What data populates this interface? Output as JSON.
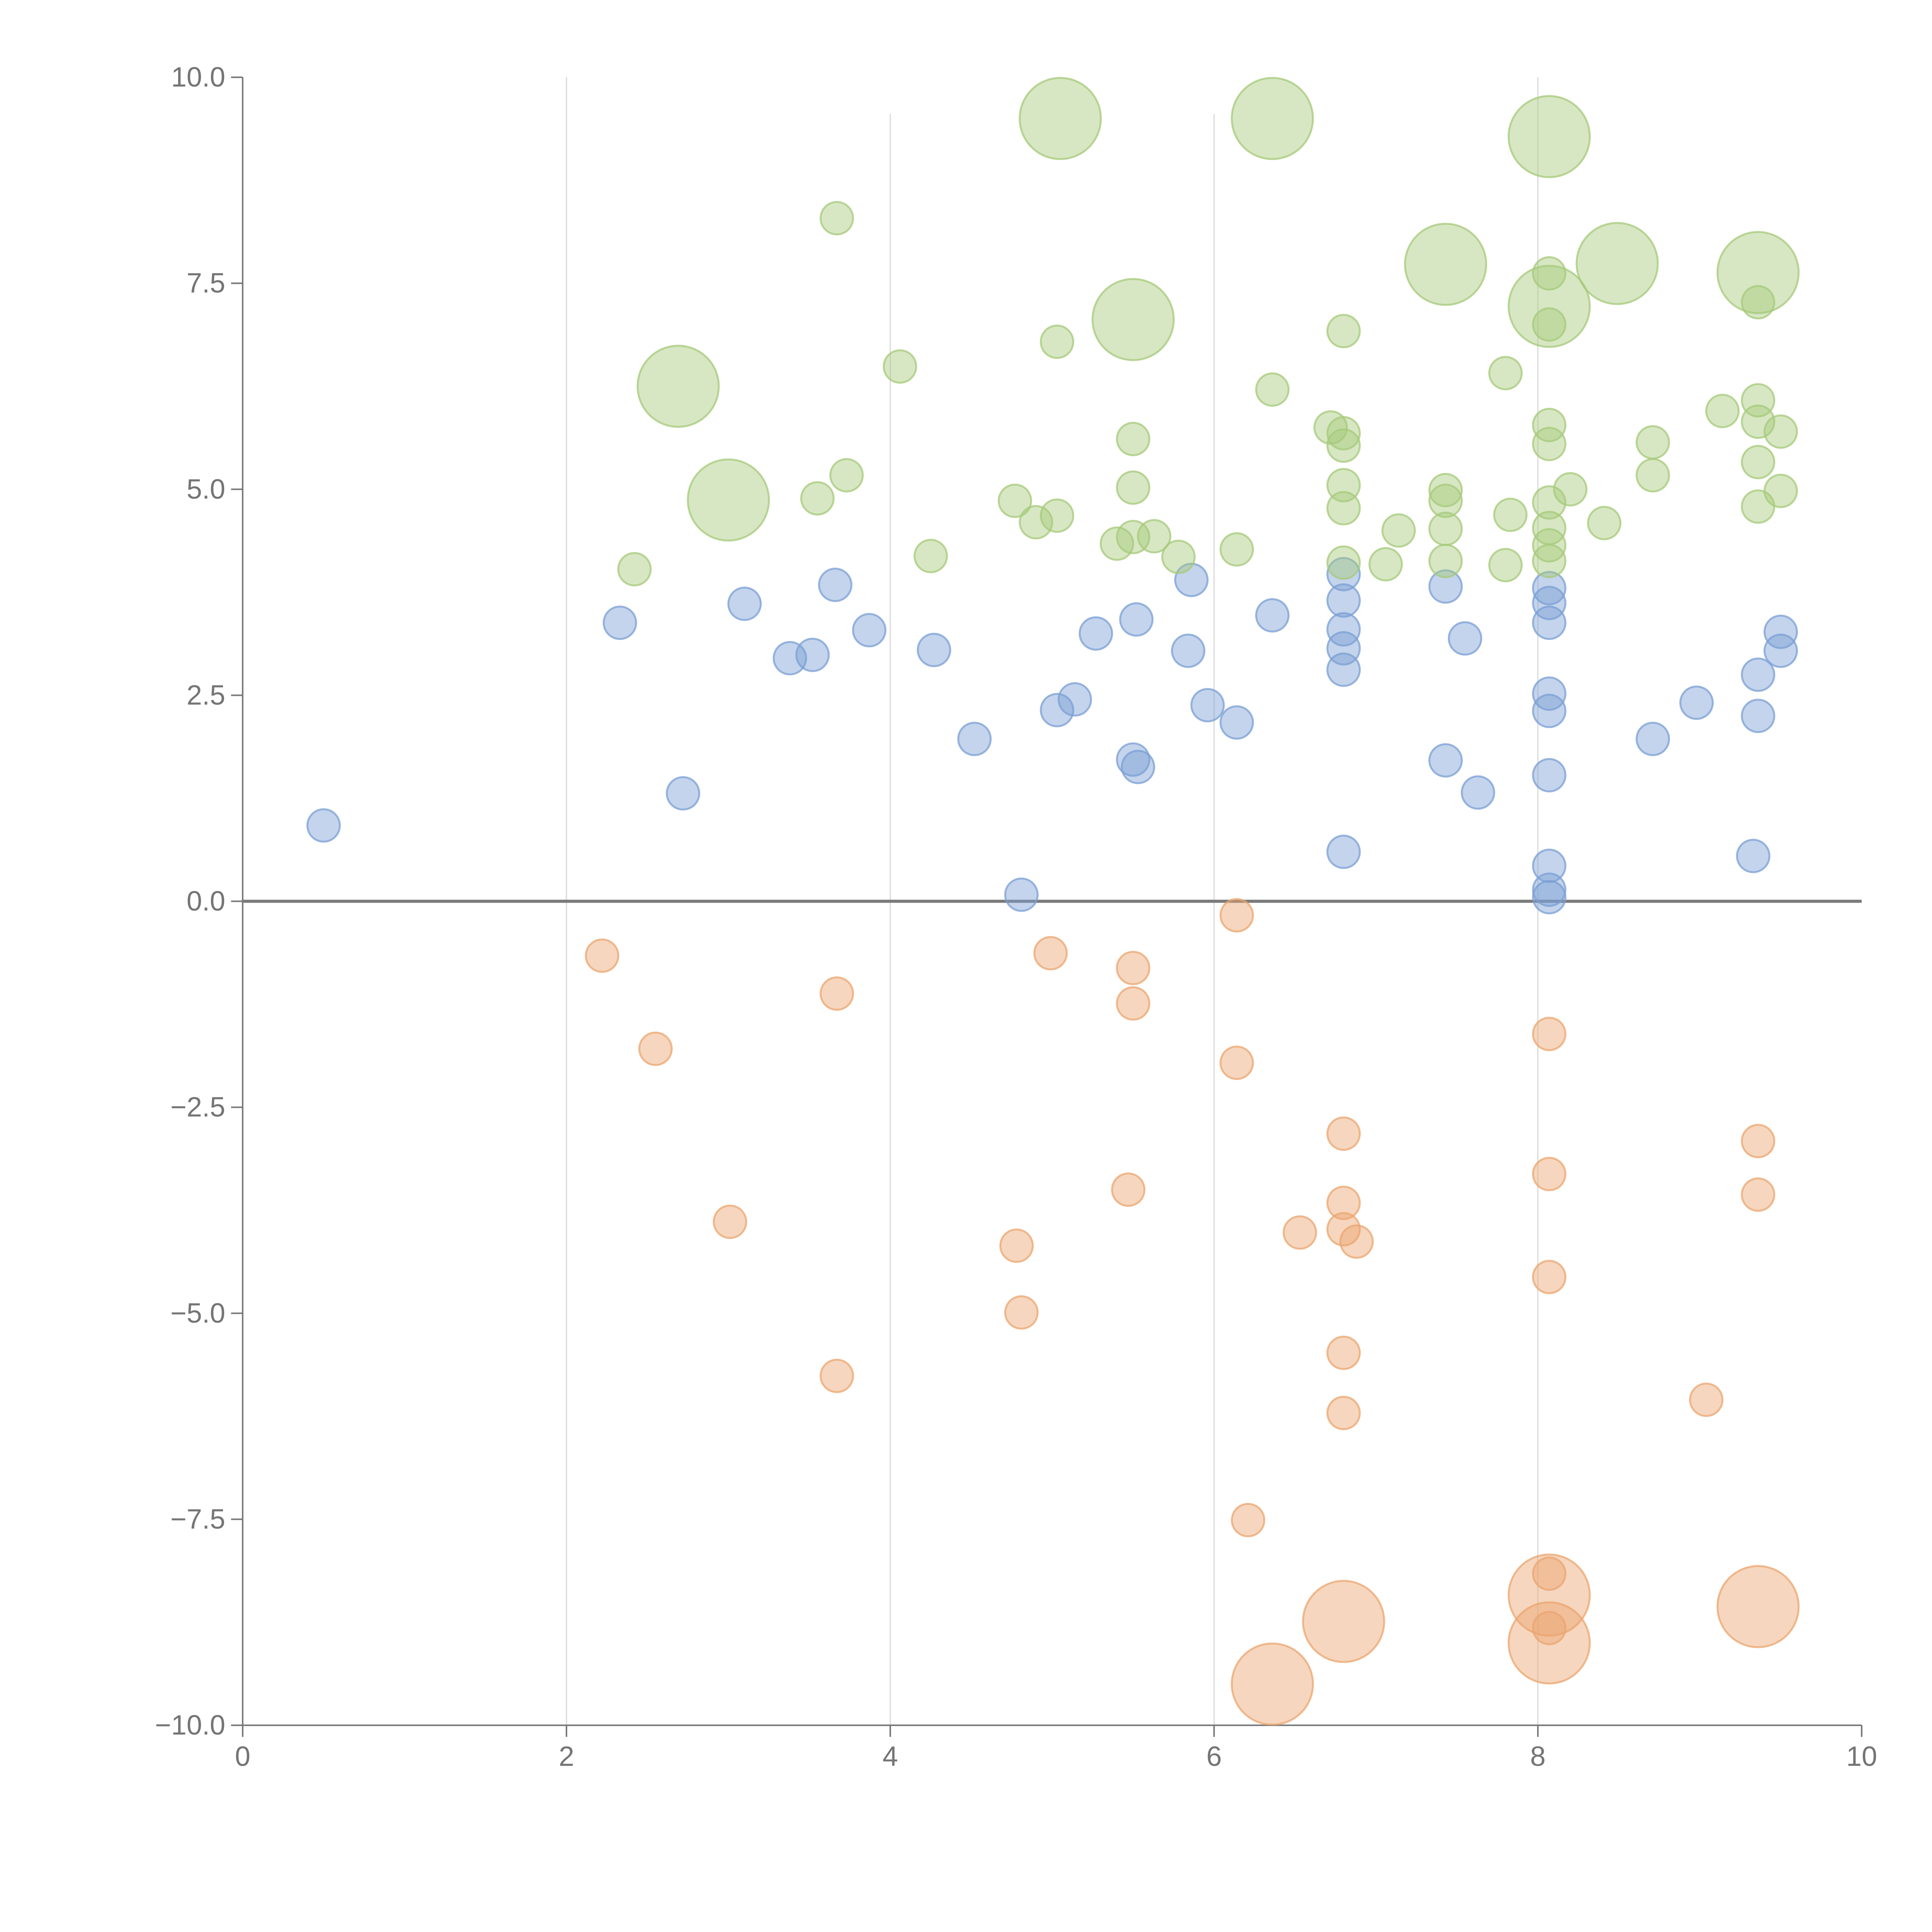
{
  "chart_data": {
    "type": "scatter",
    "title": "",
    "xlabel": "",
    "ylabel": "",
    "xlim": [
      0,
      10
    ],
    "ylim": [
      -10,
      10
    ],
    "x_ticks": [
      {
        "value": 0,
        "label": "0"
      },
      {
        "value": 2,
        "label": "2"
      },
      {
        "value": 4,
        "label": "4"
      },
      {
        "value": 6,
        "label": "6"
      },
      {
        "value": 8,
        "label": "8"
      },
      {
        "value": 10,
        "label": "10"
      }
    ],
    "y_ticks": [
      {
        "value": 10,
        "label": "10.0"
      },
      {
        "value": 7.5,
        "label": "7.5"
      },
      {
        "value": 5,
        "label": "5.0"
      },
      {
        "value": 2.5,
        "label": "2.5"
      },
      {
        "value": 0,
        "label": "0.0"
      },
      {
        "value": -2.5,
        "label": "−2.5"
      },
      {
        "value": -5,
        "label": "−5.0"
      },
      {
        "value": -7.5,
        "label": "−7.5"
      },
      {
        "value": -10,
        "label": "−10.0"
      }
    ],
    "vertical_gridlines_at": [
      2,
      4,
      6,
      8
    ],
    "horizontal_reference_line": 0,
    "legend": "none",
    "series": [
      {
        "color": "#7b9fd4",
        "points": [
          {
            "x": 0.5,
            "y": 0.92,
            "r": 1
          },
          {
            "x": 2.33,
            "y": 3.38,
            "r": 1
          },
          {
            "x": 2.72,
            "y": 1.31,
            "r": 1
          },
          {
            "x": 3.1,
            "y": 3.61,
            "r": 1
          },
          {
            "x": 3.38,
            "y": 2.95,
            "r": 1
          },
          {
            "x": 3.52,
            "y": 2.99,
            "r": 1
          },
          {
            "x": 3.66,
            "y": 3.84,
            "r": 1
          },
          {
            "x": 3.87,
            "y": 3.29,
            "r": 1
          },
          {
            "x": 4.27,
            "y": 3.05,
            "r": 1
          },
          {
            "x": 4.52,
            "y": 1.97,
            "r": 1
          },
          {
            "x": 4.81,
            "y": 0.08,
            "r": 1
          },
          {
            "x": 5.03,
            "y": 2.32,
            "r": 1
          },
          {
            "x": 5.14,
            "y": 2.45,
            "r": 1
          },
          {
            "x": 5.27,
            "y": 3.25,
            "r": 1
          },
          {
            "x": 5.5,
            "y": 1.72,
            "r": 1
          },
          {
            "x": 5.52,
            "y": 3.42,
            "r": 1
          },
          {
            "x": 5.53,
            "y": 1.63,
            "r": 1
          },
          {
            "x": 5.84,
            "y": 3.04,
            "r": 1
          },
          {
            "x": 5.86,
            "y": 3.9,
            "r": 1
          },
          {
            "x": 5.96,
            "y": 2.38,
            "r": 1
          },
          {
            "x": 6.14,
            "y": 2.17,
            "r": 1
          },
          {
            "x": 6.36,
            "y": 3.47,
            "r": 1
          },
          {
            "x": 6.8,
            "y": 0.6,
            "r": 1
          },
          {
            "x": 6.8,
            "y": 2.81,
            "r": 1
          },
          {
            "x": 6.8,
            "y": 3.07,
            "r": 1
          },
          {
            "x": 6.8,
            "y": 3.3,
            "r": 1
          },
          {
            "x": 6.8,
            "y": 3.65,
            "r": 1
          },
          {
            "x": 6.8,
            "y": 3.97,
            "r": 1
          },
          {
            "x": 7.43,
            "y": 3.82,
            "r": 1
          },
          {
            "x": 7.43,
            "y": 1.71,
            "r": 1
          },
          {
            "x": 7.55,
            "y": 3.19,
            "r": 1
          },
          {
            "x": 7.63,
            "y": 1.32,
            "r": 1
          },
          {
            "x": 8.07,
            "y": 0.05,
            "r": 1
          },
          {
            "x": 8.07,
            "y": 0.14,
            "r": 1
          },
          {
            "x": 8.07,
            "y": 0.43,
            "r": 1
          },
          {
            "x": 8.07,
            "y": 1.53,
            "r": 1
          },
          {
            "x": 8.07,
            "y": 2.31,
            "r": 1
          },
          {
            "x": 8.07,
            "y": 2.52,
            "r": 1
          },
          {
            "x": 8.07,
            "y": 3.38,
            "r": 1
          },
          {
            "x": 8.07,
            "y": 3.62,
            "r": 1
          },
          {
            "x": 8.07,
            "y": 3.8,
            "r": 1
          },
          {
            "x": 8.71,
            "y": 1.97,
            "r": 1
          },
          {
            "x": 8.98,
            "y": 2.41,
            "r": 1
          },
          {
            "x": 9.33,
            "y": 0.55,
            "r": 1
          },
          {
            "x": 9.36,
            "y": 2.25,
            "r": 1
          },
          {
            "x": 9.36,
            "y": 2.75,
            "r": 1
          },
          {
            "x": 9.5,
            "y": 3.04,
            "r": 1
          },
          {
            "x": 9.5,
            "y": 3.27,
            "r": 1
          }
        ]
      },
      {
        "color": "#a6c97a",
        "points": [
          {
            "x": 2.42,
            "y": 4.03,
            "r": 1
          },
          {
            "x": 2.69,
            "y": 6.25,
            "r": 2.5
          },
          {
            "x": 3.0,
            "y": 4.87,
            "r": 2.5
          },
          {
            "x": 3.55,
            "y": 4.89,
            "r": 1
          },
          {
            "x": 3.67,
            "y": 8.29,
            "r": 1
          },
          {
            "x": 3.73,
            "y": 5.17,
            "r": 1
          },
          {
            "x": 4.06,
            "y": 6.49,
            "r": 1
          },
          {
            "x": 4.25,
            "y": 4.19,
            "r": 1
          },
          {
            "x": 4.77,
            "y": 4.86,
            "r": 1
          },
          {
            "x": 4.9,
            "y": 4.6,
            "r": 1
          },
          {
            "x": 5.03,
            "y": 4.68,
            "r": 1
          },
          {
            "x": 5.03,
            "y": 6.79,
            "r": 1
          },
          {
            "x": 5.05,
            "y": 9.5,
            "r": 2.5
          },
          {
            "x": 5.4,
            "y": 4.34,
            "r": 1
          },
          {
            "x": 5.5,
            "y": 4.42,
            "r": 1
          },
          {
            "x": 5.5,
            "y": 5.02,
            "r": 1
          },
          {
            "x": 5.5,
            "y": 5.61,
            "r": 1
          },
          {
            "x": 5.5,
            "y": 7.06,
            "r": 2.5
          },
          {
            "x": 5.63,
            "y": 4.43,
            "r": 1
          },
          {
            "x": 5.78,
            "y": 4.18,
            "r": 1
          },
          {
            "x": 6.14,
            "y": 4.27,
            "r": 1
          },
          {
            "x": 6.36,
            "y": 6.21,
            "r": 1
          },
          {
            "x": 6.36,
            "y": 9.5,
            "r": 2.5
          },
          {
            "x": 6.72,
            "y": 5.75,
            "r": 1
          },
          {
            "x": 6.8,
            "y": 4.11,
            "r": 1
          },
          {
            "x": 6.8,
            "y": 4.77,
            "r": 1
          },
          {
            "x": 6.8,
            "y": 5.05,
            "r": 1
          },
          {
            "x": 6.8,
            "y": 5.53,
            "r": 1
          },
          {
            "x": 6.8,
            "y": 5.68,
            "r": 1
          },
          {
            "x": 6.8,
            "y": 6.92,
            "r": 1
          },
          {
            "x": 7.06,
            "y": 4.09,
            "r": 1
          },
          {
            "x": 7.14,
            "y": 4.5,
            "r": 1
          },
          {
            "x": 7.43,
            "y": 4.13,
            "r": 1
          },
          {
            "x": 7.43,
            "y": 4.52,
            "r": 1
          },
          {
            "x": 7.43,
            "y": 4.86,
            "r": 1
          },
          {
            "x": 7.43,
            "y": 4.99,
            "r": 1
          },
          {
            "x": 7.43,
            "y": 7.73,
            "r": 2.5
          },
          {
            "x": 7.8,
            "y": 4.08,
            "r": 1
          },
          {
            "x": 7.8,
            "y": 6.41,
            "r": 1
          },
          {
            "x": 7.83,
            "y": 4.69,
            "r": 1
          },
          {
            "x": 8.07,
            "y": 4.13,
            "r": 1
          },
          {
            "x": 8.07,
            "y": 4.32,
            "r": 1
          },
          {
            "x": 8.07,
            "y": 4.53,
            "r": 1
          },
          {
            "x": 8.07,
            "y": 4.84,
            "r": 1
          },
          {
            "x": 8.07,
            "y": 5.55,
            "r": 1
          },
          {
            "x": 8.07,
            "y": 5.78,
            "r": 1
          },
          {
            "x": 8.07,
            "y": 7.0,
            "r": 1
          },
          {
            "x": 8.07,
            "y": 7.22,
            "r": 2.5
          },
          {
            "x": 8.07,
            "y": 7.62,
            "r": 1
          },
          {
            "x": 8.07,
            "y": 9.28,
            "r": 2.5
          },
          {
            "x": 8.2,
            "y": 5.0,
            "r": 1
          },
          {
            "x": 8.41,
            "y": 4.59,
            "r": 1
          },
          {
            "x": 8.49,
            "y": 7.74,
            "r": 2.5
          },
          {
            "x": 8.71,
            "y": 5.17,
            "r": 1
          },
          {
            "x": 8.71,
            "y": 5.57,
            "r": 1
          },
          {
            "x": 9.14,
            "y": 5.95,
            "r": 1
          },
          {
            "x": 9.36,
            "y": 4.79,
            "r": 1
          },
          {
            "x": 9.36,
            "y": 5.33,
            "r": 1
          },
          {
            "x": 9.36,
            "y": 5.82,
            "r": 1
          },
          {
            "x": 9.36,
            "y": 6.08,
            "r": 1
          },
          {
            "x": 9.36,
            "y": 7.27,
            "r": 1
          },
          {
            "x": 9.36,
            "y": 7.63,
            "r": 2.5
          },
          {
            "x": 9.5,
            "y": 4.98,
            "r": 1
          },
          {
            "x": 9.5,
            "y": 5.7,
            "r": 1
          }
        ]
      },
      {
        "color": "#eba56f",
        "points": [
          {
            "x": 2.22,
            "y": -0.66,
            "r": 1
          },
          {
            "x": 2.55,
            "y": -1.79,
            "r": 1
          },
          {
            "x": 3.01,
            "y": -3.89,
            "r": 1
          },
          {
            "x": 3.67,
            "y": -1.12,
            "r": 1
          },
          {
            "x": 3.67,
            "y": -5.76,
            "r": 1
          },
          {
            "x": 4.78,
            "y": -4.18,
            "r": 1
          },
          {
            "x": 4.81,
            "y": -4.99,
            "r": 1
          },
          {
            "x": 4.99,
            "y": -0.63,
            "r": 1
          },
          {
            "x": 5.47,
            "y": -3.5,
            "r": 1
          },
          {
            "x": 5.5,
            "y": -0.81,
            "r": 1
          },
          {
            "x": 5.5,
            "y": -1.24,
            "r": 1
          },
          {
            "x": 6.14,
            "y": -0.17,
            "r": 1
          },
          {
            "x": 6.14,
            "y": -1.96,
            "r": 1
          },
          {
            "x": 6.21,
            "y": -7.51,
            "r": 1
          },
          {
            "x": 6.36,
            "y": -9.5,
            "r": 2.5
          },
          {
            "x": 6.53,
            "y": -4.02,
            "r": 1
          },
          {
            "x": 6.8,
            "y": -2.82,
            "r": 1
          },
          {
            "x": 6.8,
            "y": -3.66,
            "r": 1
          },
          {
            "x": 6.8,
            "y": -3.98,
            "r": 1
          },
          {
            "x": 6.8,
            "y": -5.48,
            "r": 1
          },
          {
            "x": 6.8,
            "y": -6.21,
            "r": 1
          },
          {
            "x": 6.8,
            "y": -8.74,
            "r": 2.5
          },
          {
            "x": 6.88,
            "y": -4.13,
            "r": 1
          },
          {
            "x": 8.07,
            "y": -1.61,
            "r": 1
          },
          {
            "x": 8.07,
            "y": -3.31,
            "r": 1
          },
          {
            "x": 8.07,
            "y": -4.56,
            "r": 1
          },
          {
            "x": 8.07,
            "y": -8.16,
            "r": 1
          },
          {
            "x": 8.07,
            "y": -8.42,
            "r": 2.5
          },
          {
            "x": 8.07,
            "y": -8.82,
            "r": 1
          },
          {
            "x": 8.07,
            "y": -9.0,
            "r": 2.5
          },
          {
            "x": 9.04,
            "y": -6.05,
            "r": 1
          },
          {
            "x": 9.36,
            "y": -2.91,
            "r": 1
          },
          {
            "x": 9.36,
            "y": -3.56,
            "r": 1
          },
          {
            "x": 9.36,
            "y": -8.56,
            "r": 2.5
          }
        ]
      }
    ]
  }
}
